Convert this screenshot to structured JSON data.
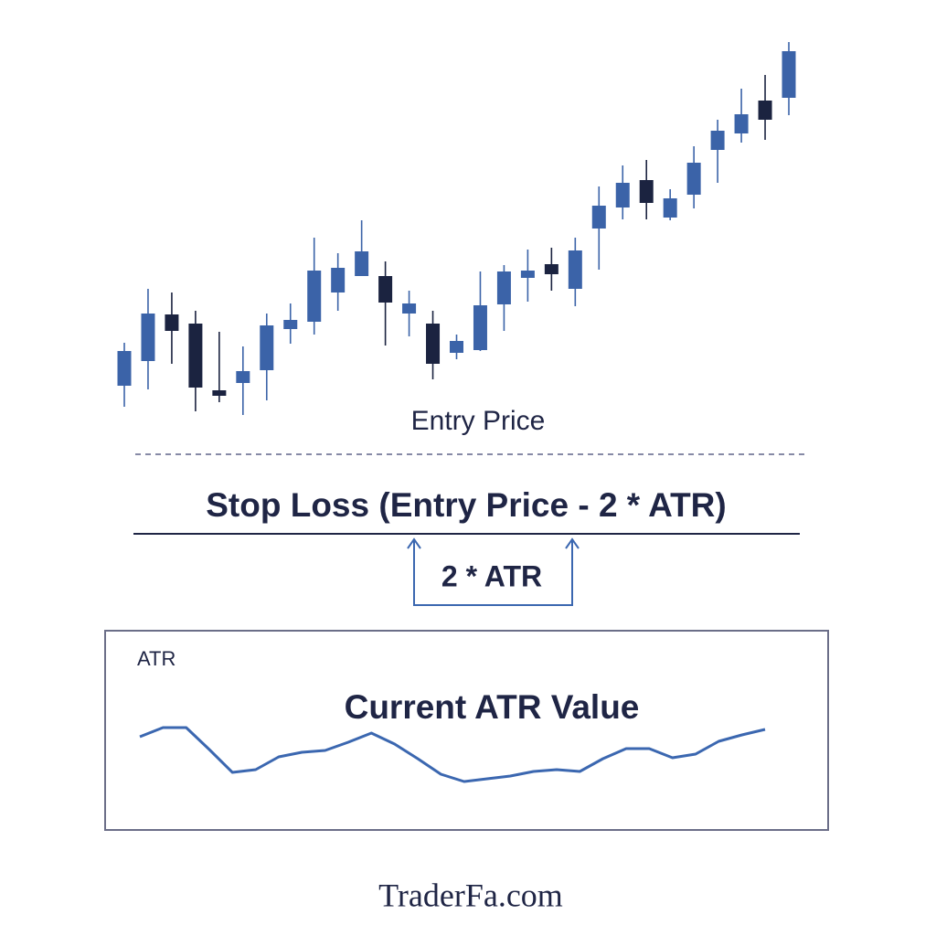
{
  "chart_data": [
    {
      "type": "candlestick",
      "open": [
        78,
        105,
        156,
        146,
        73,
        81,
        95,
        140,
        148,
        180,
        198,
        198,
        157,
        146,
        114,
        117,
        167,
        196,
        211,
        184,
        250,
        273,
        303,
        262,
        287,
        336,
        354,
        390,
        393
      ],
      "high": [
        125,
        184,
        180,
        160,
        137,
        121,
        157,
        168,
        240,
        223,
        259,
        214,
        182,
        160,
        134,
        203,
        210,
        227,
        229,
        240,
        296,
        319,
        325,
        293,
        340,
        369,
        403,
        418,
        454
      ],
      "low": [
        55,
        74,
        102,
        50,
        60,
        46,
        62,
        124,
        134,
        160,
        199,
        122,
        132,
        85,
        107,
        116,
        138,
        170,
        182,
        165,
        205,
        260,
        260,
        259,
        272,
        300,
        344,
        347,
        374
      ],
      "close": [
        116,
        157,
        138,
        76,
        67,
        94,
        144,
        150,
        204,
        207,
        225,
        169,
        168,
        102,
        127,
        166,
        203,
        204,
        200,
        226,
        275,
        300,
        278,
        283,
        322,
        357,
        375,
        369,
        444
      ],
      "up_color": "#3b63a8",
      "down_color": "#1b2340",
      "ylim": [
        40,
        480
      ],
      "annotations": [
        "Entry Price",
        "Stop Loss (Entry Price - 2 * ATR)",
        "2 * ATR"
      ]
    },
    {
      "type": "line",
      "label": "ATR",
      "title": "Current ATR Value",
      "color": "#3b67b0",
      "values": [
        94,
        104,
        104,
        80,
        55,
        58,
        72,
        77,
        79,
        88,
        98,
        86,
        70,
        53,
        45,
        48,
        51,
        56,
        58,
        56,
        70,
        81,
        81,
        71,
        75,
        89,
        96,
        102
      ],
      "ylim": [
        40,
        110
      ]
    }
  ],
  "footer": "TraderFa.com"
}
